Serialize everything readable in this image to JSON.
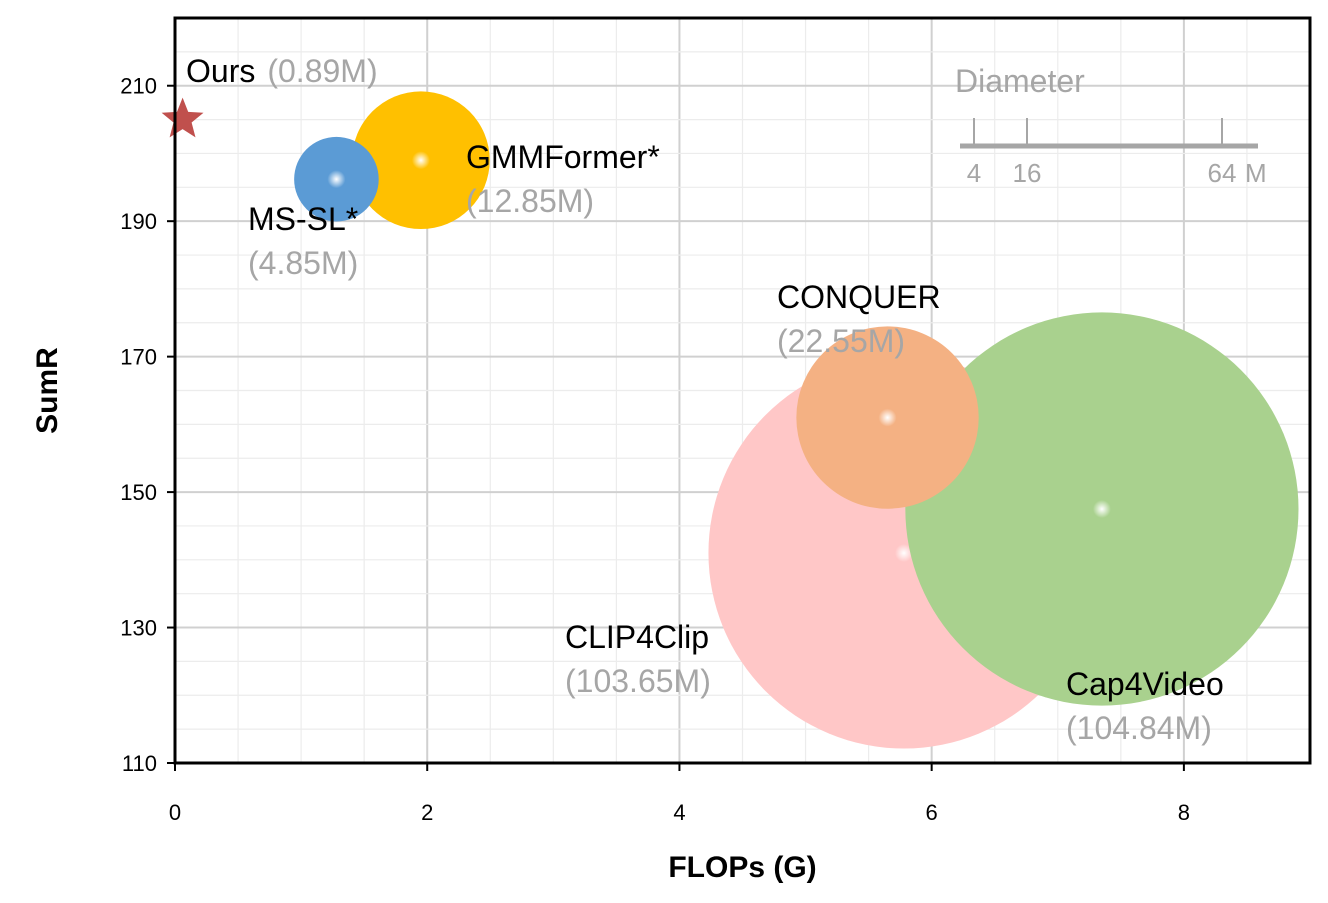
{
  "chart_data": {
    "type": "scatter",
    "xlabel": "FLOPs (G)",
    "ylabel": "SumR",
    "xlim": [
      0,
      9
    ],
    "ylim": [
      110,
      220
    ],
    "x_ticks": [
      0,
      2,
      4,
      6,
      8
    ],
    "y_ticks": [
      110,
      130,
      150,
      170,
      190,
      210
    ],
    "grid": true,
    "size_encodes": "parameters (M)",
    "points": [
      {
        "name": "Ours",
        "params_label": "(0.89M)",
        "x": 0.06,
        "y": 205,
        "params": 0.89,
        "color": "#c0504d",
        "marker": "star-icon"
      },
      {
        "name": "MS-SL*",
        "params_label": "(4.85M)",
        "x": 1.28,
        "y": 196.2,
        "params": 4.85,
        "color": "#5b9bd5",
        "marker": "circle"
      },
      {
        "name": "GMMFormer*",
        "params_label": "(12.85M)",
        "x": 1.95,
        "y": 199,
        "params": 12.85,
        "color": "#ffc000",
        "marker": "circle"
      },
      {
        "name": "CONQUER",
        "params_label": "(22.55M)",
        "x": 5.65,
        "y": 161,
        "params": 22.55,
        "color": "#f4b183",
        "marker": "circle"
      },
      {
        "name": "CLIP4Clip",
        "params_label": "(103.65M)",
        "x": 5.78,
        "y": 141,
        "params": 103.65,
        "color": "#ffc7c7",
        "marker": "circle"
      },
      {
        "name": "Cap4Video",
        "params_label": "(104.84M)",
        "x": 7.35,
        "y": 147.5,
        "params": 104.84,
        "color": "#a9d18e",
        "marker": "circle"
      }
    ],
    "diameter_legend": {
      "title": "Diameter",
      "ticks": [
        "4",
        "16",
        "64"
      ],
      "unit": "M",
      "color": "#a6a6a6"
    }
  }
}
